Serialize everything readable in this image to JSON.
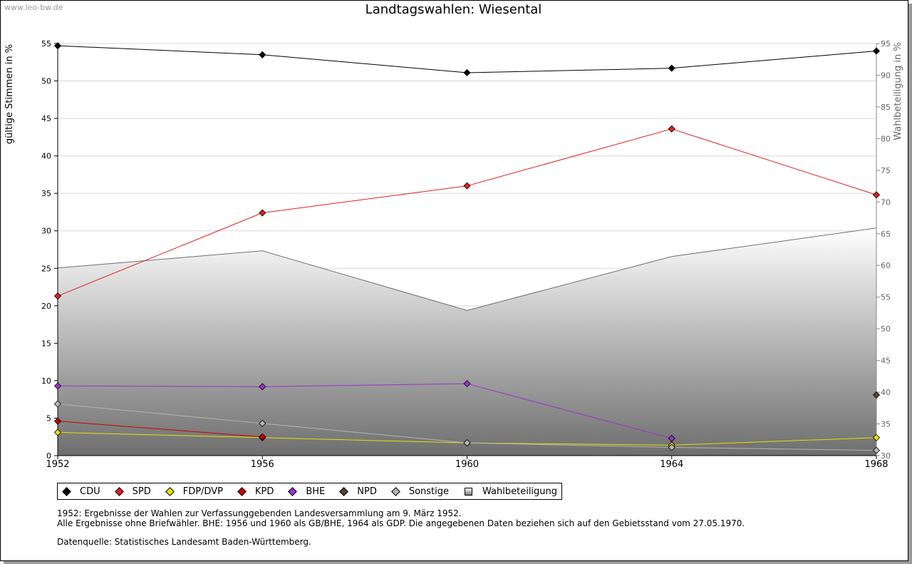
{
  "header": {
    "watermark": "www.leo-bw.de",
    "title": "Landtagswahlen: Wiesental"
  },
  "chart_data": {
    "type": "line",
    "title": "Landtagswahlen: Wiesental",
    "xlabel": "",
    "ylabel": "gültige Stimmen in %",
    "y2label": "Wahlbeteiligung in %",
    "x": [
      1952,
      1956,
      1960,
      1964,
      1968
    ],
    "xlim": [
      1952,
      1968
    ],
    "ylim": [
      0,
      55
    ],
    "y2lim": [
      30,
      95
    ],
    "yticks": [
      0,
      5,
      10,
      15,
      20,
      25,
      30,
      35,
      40,
      45,
      50,
      55
    ],
    "y2ticks": [
      30,
      35,
      40,
      45,
      50,
      55,
      60,
      65,
      70,
      75,
      80,
      85,
      90,
      95
    ],
    "grid": true,
    "legend_position": "bottom",
    "series": [
      {
        "name": "CDU",
        "color": "#000000",
        "values": [
          54.7,
          53.5,
          51.1,
          51.7,
          54.0
        ]
      },
      {
        "name": "SPD",
        "color": "#e02020",
        "values": [
          21.3,
          32.4,
          36.0,
          43.6,
          34.8
        ]
      },
      {
        "name": "FDP/DVP",
        "color": "#e8e000",
        "values": [
          3.1,
          2.4,
          1.7,
          1.4,
          2.4
        ]
      },
      {
        "name": "KPD",
        "color": "#cc0000",
        "values": [
          4.6,
          2.5,
          null,
          null,
          null
        ]
      },
      {
        "name": "BHE",
        "color": "#9933cc",
        "values": [
          9.3,
          9.2,
          9.6,
          2.3,
          null
        ]
      },
      {
        "name": "NPD",
        "color": "#5a4030",
        "values": [
          null,
          null,
          null,
          null,
          8.1
        ]
      },
      {
        "name": "Sonstige",
        "color": "#b4b4b4",
        "values": [
          6.9,
          4.3,
          1.7,
          1.1,
          0.7
        ]
      },
      {
        "name": "Wahlbeteiligung",
        "axis": "right",
        "type": "area",
        "values": [
          59.6,
          62.3,
          52.9,
          61.4,
          65.9
        ]
      }
    ]
  },
  "notes": {
    "line1": "1952: Ergebnisse der Wahlen zur Verfassunggebenden Landesversammlung am 9. März 1952.",
    "line2": "Alle Ergebnisse ohne Briefwähler. BHE: 1956 und 1960 als GB/BHE, 1964 als GDP. Die angegebenen Daten beziehen sich auf den Gebietsstand vom 27.05.1970.",
    "source": "Datenquelle: Statistisches Landesamt Baden-Württemberg."
  }
}
